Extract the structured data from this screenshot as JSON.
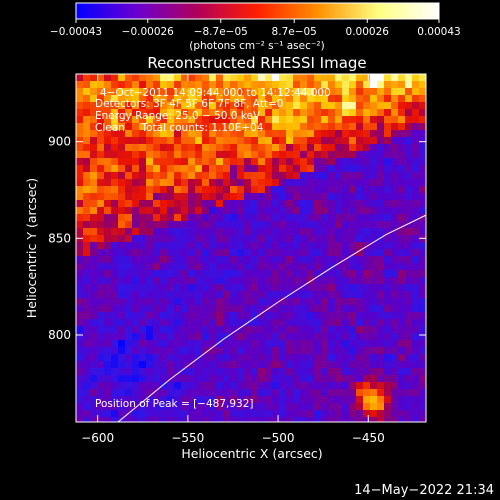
{
  "chart_data": {
    "type": "heatmap",
    "title": "Reconstructed RHESSI Image",
    "xlabel": "Heliocentric X (arcsec)",
    "ylabel": "Heliocentric Y (arcsec)",
    "xlim": [
      -612,
      -418
    ],
    "ylim": [
      755,
      935
    ],
    "x_ticks": [
      -600,
      -550,
      -500,
      -450
    ],
    "x_tick_labels": [
      "−600",
      "−550",
      "−500",
      "−450"
    ],
    "y_ticks": [
      800,
      850,
      900
    ],
    "y_tick_labels": [
      "800",
      "850",
      "900"
    ],
    "colorbar": {
      "range": [
        -0.00043,
        0.00043
      ],
      "tick_values": [
        -0.00043,
        -0.00026,
        -8.7e-05,
        8.7e-05,
        0.00026,
        0.00043
      ],
      "tick_labels": [
        "−0.00043",
        "−0.00026",
        "−8.7e−05",
        "8.7e−05",
        "0.00026",
        "0.00043"
      ],
      "units_label": "(photons cm⁻² s⁻¹ asec⁻²)",
      "colors": [
        "#0000ff",
        "#6a00d0",
        "#b0005a",
        "#ff2000",
        "#ff9000",
        "#ffff80",
        "#ffffff"
      ]
    },
    "annotations": [
      "4−Oct−2011 14:09:44.000 to 14:12:44.000",
      "Detectors: 3F 4F 5F 6F 7F 8F, Att=0",
      "Energy Range: 25.0 − 50.0 keV",
      "Clean     Total counts: 1.10E+04"
    ],
    "peak_label": "Position of Peak = [−487,932]",
    "peak_position": [
      -487,
      932
    ],
    "limb_curve": {
      "x": [
        -590,
        -560,
        -530,
        -500,
        -470,
        -440,
        -418
      ],
      "y": [
        754,
        777,
        798,
        817,
        835,
        852,
        862
      ]
    }
  },
  "footer": {
    "timestamp": "14−May−2022 21:34"
  }
}
